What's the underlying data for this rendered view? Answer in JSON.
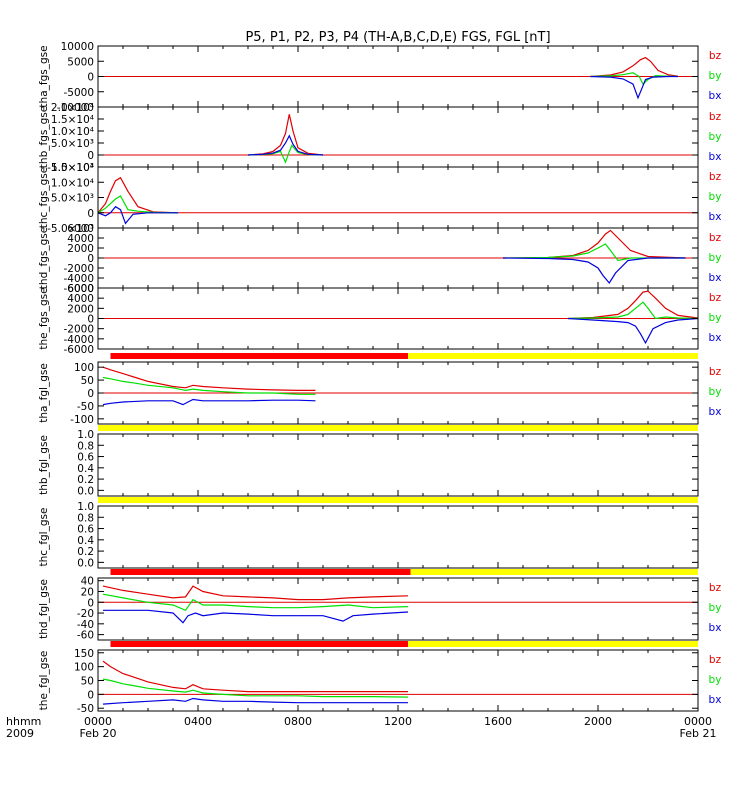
{
  "title": "P5, P1, P2, P3, P4 (TH-A,B,C,D,E) FGS, FGL [nT]",
  "colors": {
    "bx": "#0000e0",
    "by": "#00e000",
    "bz": "#e00000",
    "zero": "#e00000",
    "bar_red": "#ff0000",
    "bar_yellow": "#ffff00",
    "frame": "#000000"
  },
  "x_axis": {
    "label_row1": "hhmm",
    "label_row2": "2009",
    "range_hours": [
      0,
      24
    ],
    "ticks": [
      {
        "hour": 0,
        "label": "0000",
        "sublabel": "Feb 20"
      },
      {
        "hour": 4,
        "label": "0400",
        "sublabel": ""
      },
      {
        "hour": 8,
        "label": "0800",
        "sublabel": ""
      },
      {
        "hour": 12,
        "label": "1200",
        "sublabel": ""
      },
      {
        "hour": 16,
        "label": "1600",
        "sublabel": ""
      },
      {
        "hour": 20,
        "label": "2000",
        "sublabel": ""
      },
      {
        "hour": 24,
        "label": "0000",
        "sublabel": "Feb 21"
      }
    ]
  },
  "chart_data": [
    {
      "type": "line",
      "ylabel": "tha_fgs_gse",
      "ylim": [
        -10000,
        10000
      ],
      "ytick_labels": [
        "10000",
        "5000",
        "0",
        "-5000",
        "-10000"
      ],
      "ytick_values": [
        10000,
        5000,
        0,
        -5000,
        -10000
      ],
      "legend": [
        "bz",
        "by",
        "bx"
      ],
      "series": [
        {
          "name": "bz",
          "color": "#e00000",
          "x": [
            19.7,
            20.5,
            21.0,
            21.4,
            21.7,
            21.9,
            22.1,
            22.4,
            22.8,
            23.2
          ],
          "y": [
            0,
            500,
            1500,
            3500,
            5500,
            6200,
            5000,
            2000,
            600,
            100
          ]
        },
        {
          "name": "by",
          "color": "#00e000",
          "x": [
            19.7,
            20.5,
            21.0,
            21.4,
            21.65,
            21.8,
            22.0,
            22.3,
            22.8,
            23.2
          ],
          "y": [
            0,
            200,
            600,
            1200,
            0,
            -2500,
            -1000,
            300,
            100,
            0
          ]
        },
        {
          "name": "bx",
          "color": "#0000e0",
          "x": [
            19.7,
            20.5,
            21.0,
            21.4,
            21.6,
            21.75,
            21.9,
            22.2,
            22.8,
            23.2
          ],
          "y": [
            0,
            -200,
            -800,
            -2500,
            -7000,
            -4000,
            -1000,
            -200,
            0,
            0
          ]
        }
      ]
    },
    {
      "type": "line",
      "ylabel": "thb_fgs_gse",
      "ylim": [
        -5000,
        20000
      ],
      "ytick_labels": [
        "2.0×10⁴",
        "1.5×10⁴",
        "1.0×10⁴",
        "5.0×10³",
        "0",
        "-5.0×10³"
      ],
      "ytick_values": [
        20000,
        15000,
        10000,
        5000,
        0,
        -5000
      ],
      "legend": [
        "bz",
        "by",
        "bx"
      ],
      "series": [
        {
          "name": "bz",
          "color": "#e00000",
          "x": [
            6.0,
            6.6,
            7.0,
            7.3,
            7.5,
            7.65,
            7.8,
            8.0,
            8.4,
            9.0
          ],
          "y": [
            0,
            500,
            1500,
            4000,
            9000,
            17000,
            10000,
            3000,
            700,
            0
          ]
        },
        {
          "name": "by",
          "color": "#00e000",
          "x": [
            6.0,
            6.6,
            7.0,
            7.3,
            7.5,
            7.62,
            7.75,
            8.0,
            8.4,
            9.0
          ],
          "y": [
            0,
            200,
            600,
            1500,
            -3000,
            500,
            4000,
            1000,
            200,
            0
          ]
        },
        {
          "name": "bx",
          "color": "#0000e0",
          "x": [
            6.0,
            6.6,
            7.0,
            7.3,
            7.5,
            7.65,
            7.8,
            8.0,
            8.4,
            9.0
          ],
          "y": [
            0,
            300,
            800,
            2000,
            5000,
            8000,
            4500,
            1500,
            300,
            0
          ]
        }
      ]
    },
    {
      "type": "line",
      "ylabel": "thc_fgs_gse",
      "ylim": [
        -5000,
        15000
      ],
      "ytick_labels": [
        "1.5×10⁴",
        "1.0×10⁴",
        "5.0×10³",
        "0",
        "-5.0×10³"
      ],
      "ytick_values": [
        15000,
        10000,
        5000,
        0,
        -5000
      ],
      "legend": [
        "bz",
        "by",
        "bx"
      ],
      "series": [
        {
          "name": "bz",
          "color": "#e00000",
          "x": [
            0.0,
            0.3,
            0.5,
            0.7,
            0.9,
            1.2,
            1.6,
            2.2,
            3.2
          ],
          "y": [
            0,
            3000,
            7000,
            10500,
            11500,
            7000,
            2000,
            300,
            0
          ]
        },
        {
          "name": "by",
          "color": "#00e000",
          "x": [
            0.0,
            0.3,
            0.5,
            0.7,
            0.9,
            1.2,
            1.6,
            2.2,
            3.2
          ],
          "y": [
            0,
            1500,
            3000,
            4500,
            5500,
            1000,
            500,
            100,
            0
          ]
        },
        {
          "name": "bx",
          "color": "#0000e0",
          "x": [
            0.0,
            0.3,
            0.5,
            0.7,
            0.9,
            1.1,
            1.4,
            2.0,
            3.2
          ],
          "y": [
            0,
            -1000,
            0,
            2000,
            1000,
            -3500,
            -500,
            0,
            0
          ]
        }
      ]
    },
    {
      "type": "line",
      "ylabel": "thd_fgs_gse",
      "ylim": [
        -6000,
        6000
      ],
      "ytick_labels": [
        "6000",
        "4000",
        "2000",
        "0",
        "-2000",
        "-4000",
        "-6000"
      ],
      "ytick_values": [
        6000,
        4000,
        2000,
        0,
        -2000,
        -4000,
        -6000
      ],
      "legend": [
        "bz",
        "by",
        "bx"
      ],
      "series": [
        {
          "name": "bz",
          "color": "#e00000",
          "x": [
            16.2,
            18.0,
            19.0,
            19.6,
            20.0,
            20.3,
            20.5,
            20.8,
            21.3,
            22.0,
            23.5
          ],
          "y": [
            0,
            100,
            500,
            1500,
            3000,
            4800,
            5500,
            4000,
            1500,
            300,
            0
          ]
        },
        {
          "name": "by",
          "color": "#00e000",
          "x": [
            16.2,
            18.0,
            19.0,
            19.6,
            20.0,
            20.3,
            20.5,
            20.8,
            21.3,
            22.0,
            23.5
          ],
          "y": [
            0,
            100,
            400,
            1000,
            2000,
            2800,
            1500,
            -500,
            0,
            0,
            0
          ]
        },
        {
          "name": "bx",
          "color": "#0000e0",
          "x": [
            16.2,
            18.0,
            19.0,
            19.6,
            20.0,
            20.2,
            20.45,
            20.7,
            21.2,
            22.0,
            23.5
          ],
          "y": [
            0,
            -100,
            -300,
            -800,
            -2000,
            -3500,
            -5000,
            -3000,
            -500,
            0,
            0
          ]
        }
      ]
    },
    {
      "type": "line",
      "ylabel": "the_fgs_gse",
      "ylim": [
        -6000,
        6000
      ],
      "ytick_labels": [
        "6000",
        "4000",
        "2000",
        "0",
        "-2000",
        "-4000",
        "-6000"
      ],
      "ytick_values": [
        6000,
        4000,
        2000,
        0,
        -2000,
        -4000,
        -6000
      ],
      "legend": [
        "bz",
        "by",
        "bx"
      ],
      "series": [
        {
          "name": "bz",
          "color": "#e00000",
          "x": [
            18.8,
            19.8,
            20.8,
            21.2,
            21.5,
            21.8,
            22.0,
            22.3,
            22.7,
            23.2,
            24.0
          ],
          "y": [
            0,
            200,
            800,
            2000,
            3500,
            5200,
            5400,
            4000,
            2000,
            600,
            100
          ]
        },
        {
          "name": "by",
          "color": "#00e000",
          "x": [
            18.8,
            19.8,
            20.8,
            21.2,
            21.5,
            21.8,
            22.0,
            22.3,
            22.7,
            23.2,
            24.0
          ],
          "y": [
            0,
            100,
            300,
            800,
            2000,
            3200,
            2000,
            0,
            300,
            100,
            0
          ]
        },
        {
          "name": "bx",
          "color": "#0000e0",
          "x": [
            18.8,
            19.8,
            20.8,
            21.2,
            21.5,
            21.7,
            21.9,
            22.2,
            22.7,
            23.2,
            24.0
          ],
          "y": [
            0,
            -300,
            -600,
            -800,
            -1500,
            -3000,
            -4800,
            -2000,
            -800,
            -300,
            0
          ]
        }
      ]
    },
    {
      "type": "line",
      "ylabel": "tha_fgl_gse",
      "ylim": [
        -120,
        120
      ],
      "ytick_labels": [
        "100",
        "50",
        "0",
        "-50",
        "-100"
      ],
      "ytick_values": [
        100,
        50,
        0,
        -50,
        -100
      ],
      "legend": [
        "bz",
        "by",
        "bx"
      ],
      "status_bar": [
        {
          "from": 0.5,
          "to": 12.4,
          "color": "#ff0000"
        },
        {
          "from": 12.4,
          "to": 24,
          "color": "#ffff00"
        }
      ],
      "series": [
        {
          "name": "bz",
          "color": "#e00000",
          "x": [
            0.2,
            0.5,
            1.0,
            1.5,
            2.0,
            3.0,
            3.5,
            3.8,
            4.2,
            5.0,
            6.0,
            7.0,
            8.0,
            8.7
          ],
          "y": [
            100,
            90,
            75,
            60,
            45,
            25,
            20,
            30,
            25,
            20,
            15,
            12,
            10,
            10
          ]
        },
        {
          "name": "by",
          "color": "#00e000",
          "x": [
            0.2,
            0.5,
            1.0,
            1.5,
            2.0,
            3.0,
            3.5,
            3.8,
            4.2,
            5.0,
            6.0,
            7.0,
            8.0,
            8.7
          ],
          "y": [
            60,
            55,
            45,
            38,
            30,
            20,
            10,
            15,
            10,
            5,
            0,
            0,
            -5,
            -5
          ]
        },
        {
          "name": "bx",
          "color": "#0000e0",
          "x": [
            0.2,
            0.5,
            1.0,
            2.0,
            3.0,
            3.4,
            3.6,
            3.8,
            4.2,
            5.0,
            6.0,
            7.0,
            8.0,
            8.7
          ],
          "y": [
            -45,
            -40,
            -35,
            -30,
            -30,
            -45,
            -35,
            -25,
            -30,
            -30,
            -30,
            -28,
            -28,
            -30
          ]
        }
      ]
    },
    {
      "type": "line",
      "ylabel": "thb_fgl_gse",
      "ylim": [
        -0.1,
        1.0
      ],
      "ytick_labels": [
        "1.0",
        "0.8",
        "0.6",
        "0.4",
        "0.2",
        "0.0"
      ],
      "ytick_values": [
        1.0,
        0.8,
        0.6,
        0.4,
        0.2,
        0.0
      ],
      "legend": [],
      "status_bar": [
        {
          "from": 0,
          "to": 24,
          "color": "#ffff00"
        }
      ],
      "series": []
    },
    {
      "type": "line",
      "ylabel": "thc_fgl_gse",
      "ylim": [
        -0.1,
        1.0
      ],
      "ytick_labels": [
        "1.0",
        "0.8",
        "0.6",
        "0.4",
        "0.2",
        "0.0"
      ],
      "ytick_values": [
        1.0,
        0.8,
        0.6,
        0.4,
        0.2,
        0.0
      ],
      "legend": [],
      "status_bar": [
        {
          "from": 0,
          "to": 24,
          "color": "#ffff00"
        }
      ],
      "series": []
    },
    {
      "type": "line",
      "ylabel": "thd_fgl_gse",
      "ylim": [
        -70,
        45
      ],
      "ytick_labels": [
        "40",
        "20",
        "0",
        "-20",
        "-40",
        "-60"
      ],
      "ytick_values": [
        40,
        20,
        0,
        -20,
        -40,
        -60
      ],
      "legend": [
        "bz",
        "by",
        "bx"
      ],
      "status_bar": [
        {
          "from": 0.5,
          "to": 12.5,
          "color": "#ff0000"
        },
        {
          "from": 12.5,
          "to": 24,
          "color": "#ffff00"
        }
      ],
      "series": [
        {
          "name": "bz",
          "color": "#e00000",
          "x": [
            0.2,
            1.0,
            2.0,
            3.0,
            3.5,
            3.8,
            4.2,
            5.0,
            6.0,
            7.0,
            8.0,
            9.0,
            10.0,
            11.0,
            12.4
          ],
          "y": [
            30,
            22,
            15,
            8,
            10,
            30,
            20,
            12,
            10,
            8,
            5,
            5,
            8,
            10,
            12
          ]
        },
        {
          "name": "by",
          "color": "#00e000",
          "x": [
            0.2,
            1.0,
            2.0,
            3.0,
            3.5,
            3.8,
            4.2,
            5.0,
            6.0,
            7.0,
            8.0,
            9.0,
            10.0,
            11.0,
            12.4
          ],
          "y": [
            15,
            8,
            0,
            -5,
            -15,
            5,
            -5,
            -5,
            -8,
            -10,
            -10,
            -8,
            -5,
            -10,
            -8
          ]
        },
        {
          "name": "bx",
          "color": "#0000e0",
          "x": [
            0.2,
            1.0,
            2.0,
            3.0,
            3.4,
            3.6,
            3.9,
            4.2,
            5.0,
            6.0,
            7.0,
            8.0,
            9.0,
            9.8,
            10.2,
            11.0,
            12.4
          ],
          "y": [
            -15,
            -15,
            -15,
            -20,
            -38,
            -25,
            -20,
            -25,
            -20,
            -22,
            -25,
            -25,
            -25,
            -35,
            -25,
            -22,
            -18
          ]
        }
      ]
    },
    {
      "type": "line",
      "ylabel": "the_fgl_gse",
      "ylim": [
        -60,
        160
      ],
      "ytick_labels": [
        "150",
        "100",
        "50",
        "0",
        "-50"
      ],
      "ytick_values": [
        150,
        100,
        50,
        0,
        -50
      ],
      "legend": [
        "bz",
        "by",
        "bx"
      ],
      "status_bar": [
        {
          "from": 0.5,
          "to": 12.4,
          "color": "#ff0000"
        },
        {
          "from": 12.4,
          "to": 24,
          "color": "#ffff00"
        }
      ],
      "series": [
        {
          "name": "bz",
          "color": "#e00000",
          "x": [
            0.2,
            0.5,
            1.0,
            1.5,
            2.0,
            3.0,
            3.5,
            3.8,
            4.2,
            5.0,
            6.0,
            7.0,
            8.0,
            9.0,
            10.0,
            11.0,
            12.4
          ],
          "y": [
            120,
            100,
            75,
            60,
            45,
            25,
            20,
            35,
            20,
            15,
            10,
            10,
            10,
            10,
            10,
            10,
            10
          ]
        },
        {
          "name": "by",
          "color": "#00e000",
          "x": [
            0.2,
            0.5,
            1.0,
            1.5,
            2.0,
            3.0,
            3.5,
            3.8,
            4.2,
            5.0,
            6.0,
            7.0,
            8.0,
            9.0,
            10.0,
            11.0,
            12.4
          ],
          "y": [
            55,
            50,
            38,
            30,
            22,
            12,
            8,
            15,
            5,
            0,
            -5,
            -5,
            -5,
            -8,
            -8,
            -8,
            -10
          ]
        },
        {
          "name": "bx",
          "color": "#0000e0",
          "x": [
            0.2,
            1.0,
            2.0,
            3.0,
            3.5,
            3.8,
            4.2,
            5.0,
            6.0,
            7.0,
            8.0,
            9.0,
            10.0,
            11.0,
            12.4
          ],
          "y": [
            -35,
            -30,
            -25,
            -20,
            -25,
            -15,
            -20,
            -25,
            -25,
            -28,
            -30,
            -30,
            -30,
            -30,
            -30
          ]
        }
      ]
    }
  ]
}
